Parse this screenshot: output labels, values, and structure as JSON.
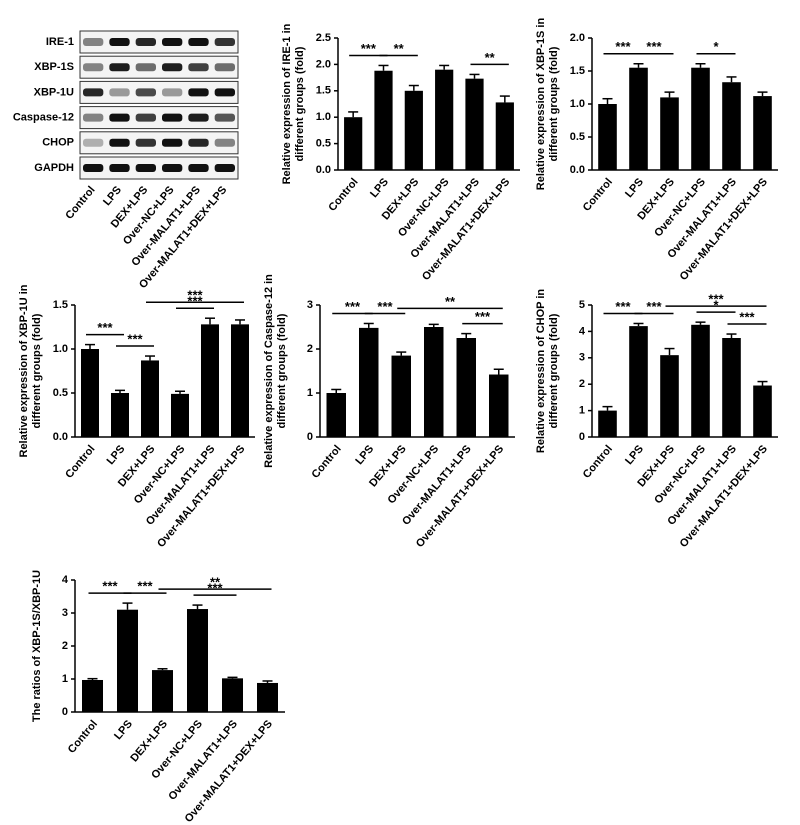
{
  "blot": {
    "rows": [
      "IRE-1",
      "XBP-1S",
      "XBP-1U",
      "Caspase-12",
      "CHOP",
      "GAPDH"
    ],
    "lanes": [
      "Control",
      "LPS",
      "DEX+LPS",
      "Over-NC+LPS",
      "Over-MALAT1+LPS",
      "Over-MALAT1+DEX+LPS"
    ]
  },
  "chart_data": [
    {
      "type": "bar",
      "ylabel": [
        "Relative expression of IRE-1 in",
        "different groups (fold)"
      ],
      "categories": [
        "Control",
        "LPS",
        "DEX+LPS",
        "Over-NC+LPS",
        "Over-MALAT1+LPS",
        "Over-MALAT1+DEX+LPS"
      ],
      "values": [
        1.0,
        1.88,
        1.5,
        1.9,
        1.73,
        1.28
      ],
      "errors": [
        0.1,
        0.1,
        0.1,
        0.08,
        0.08,
        0.12
      ],
      "color": "#000000",
      "ylim": [
        0,
        2.5
      ],
      "yticks": [
        {
          "value": 0,
          "label": "0.0"
        },
        0.5,
        {
          "value": 1,
          "label": "1.0"
        },
        1.5,
        {
          "value": 2,
          "label": "2.0"
        },
        2.5
      ],
      "annotations": [
        {
          "label": "***",
          "groups": [
            "Control",
            "LPS"
          ]
        },
        {
          "label": "**",
          "groups": [
            "LPS",
            "DEX+LPS"
          ]
        },
        {
          "label": "**",
          "groups": [
            "Over-MALAT1+LPS",
            "Over-MALAT1+DEX+LPS"
          ]
        }
      ]
    },
    {
      "type": "bar",
      "ylabel": [
        "Relative expression of XBP-1S in",
        "different groups (fold)"
      ],
      "categories": [
        "Control",
        "LPS",
        "DEX+LPS",
        "Over-NC+LPS",
        "Over-MALAT1+LPS",
        "Over-MALAT1+DEX+LPS"
      ],
      "values": [
        1.0,
        1.55,
        1.1,
        1.55,
        1.33,
        1.12
      ],
      "errors": [
        0.08,
        0.06,
        0.08,
        0.06,
        0.08,
        0.06
      ],
      "color": "#000000",
      "ylim": [
        0,
        2
      ],
      "yticks": [
        {
          "value": 0,
          "label": "0.0"
        },
        0.5,
        {
          "value": 1,
          "label": "1.0"
        },
        1.5,
        {
          "value": 2,
          "label": "2.0"
        }
      ],
      "annotations": [
        {
          "label": "***",
          "groups": [
            "Control",
            "LPS"
          ]
        },
        {
          "label": "***",
          "groups": [
            "LPS",
            "DEX+LPS"
          ]
        },
        {
          "label": "*",
          "groups": [
            "Over-NC+LPS",
            "Over-MALAT1+LPS"
          ]
        }
      ]
    },
    {
      "type": "bar",
      "ylabel": [
        "Relative expression of XBP-1U in",
        "different groups (fold)"
      ],
      "categories": [
        "Control",
        "LPS",
        "DEX+LPS",
        "Over-NC+LPS",
        "Over-MALAT1+LPS",
        "Over-MALAT1+DEX+LPS"
      ],
      "values": [
        1.0,
        0.5,
        0.87,
        0.49,
        1.28,
        1.28
      ],
      "errors": [
        0.05,
        0.03,
        0.05,
        0.03,
        0.07,
        0.05
      ],
      "color": "#000000",
      "ylim": [
        0,
        1.5
      ],
      "yticks": [
        {
          "value": 0,
          "label": "0.0"
        },
        0.5,
        {
          "value": 1,
          "label": "1.0"
        },
        1.5
      ],
      "annotations": [
        {
          "label": "***",
          "groups": [
            "Control",
            "LPS"
          ]
        },
        {
          "label": "***",
          "groups": [
            "LPS",
            "DEX+LPS"
          ]
        },
        {
          "label": "***",
          "groups": [
            "DEX+LPS",
            "Over-MALAT1+DEX+LPS"
          ]
        },
        {
          "label": "***",
          "groups": [
            "Over-NC+LPS",
            "Over-MALAT1+LPS"
          ]
        }
      ]
    },
    {
      "type": "bar",
      "ylabel": [
        "Relative expression of Caspase-12 in",
        "different groups (fold)"
      ],
      "categories": [
        "Control",
        "LPS",
        "DEX+LPS",
        "Over-NC+LPS",
        "Over-MALAT1+LPS",
        "Over-MALAT1+DEX+LPS"
      ],
      "values": [
        1.0,
        2.48,
        1.85,
        2.5,
        2.25,
        1.42
      ],
      "errors": [
        0.08,
        0.1,
        0.08,
        0.06,
        0.1,
        0.12
      ],
      "color": "#000000",
      "ylim": [
        0,
        3
      ],
      "yticks": [
        0,
        1,
        2,
        3
      ],
      "annotations": [
        {
          "label": "***",
          "groups": [
            "Control",
            "LPS"
          ]
        },
        {
          "label": "***",
          "groups": [
            "LPS",
            "DEX+LPS"
          ]
        },
        {
          "label": "**",
          "groups": [
            "DEX+LPS",
            "Over-MALAT1+DEX+LPS"
          ]
        },
        {
          "label": "***",
          "groups": [
            "Over-MALAT1+LPS",
            "Over-MALAT1+DEX+LPS"
          ]
        }
      ]
    },
    {
      "type": "bar",
      "ylabel": [
        "Relative expression of CHOP in",
        "different groups (fold)"
      ],
      "categories": [
        "Control",
        "LPS",
        "DEX+LPS",
        "Over-NC+LPS",
        "Over-MALAT1+LPS",
        "Over-MALAT1+DEX+LPS"
      ],
      "values": [
        1.0,
        4.2,
        3.1,
        4.25,
        3.75,
        1.95
      ],
      "errors": [
        0.15,
        0.1,
        0.25,
        0.1,
        0.15,
        0.15
      ],
      "color": "#000000",
      "ylim": [
        0,
        5
      ],
      "yticks": [
        0,
        1,
        2,
        3,
        4,
        5
      ],
      "annotations": [
        {
          "label": "***",
          "groups": [
            "Control",
            "LPS"
          ]
        },
        {
          "label": "***",
          "groups": [
            "LPS",
            "DEX+LPS"
          ]
        },
        {
          "label": "***",
          "groups": [
            "DEX+LPS",
            "Over-MALAT1+DEX+LPS"
          ]
        },
        {
          "label": "*",
          "groups": [
            "Over-NC+LPS",
            "Over-MALAT1+LPS"
          ]
        },
        {
          "label": "***",
          "groups": [
            "Over-MALAT1+LPS",
            "Over-MALAT1+DEX+LPS"
          ]
        }
      ]
    },
    {
      "type": "bar",
      "ylabel": [
        "The ratios of XBP-1S/XBP-1U"
      ],
      "categories": [
        "Control",
        "LPS",
        "DEX+LPS",
        "Over-NC+LPS",
        "Over-MALAT1+LPS",
        "Over-MALAT1+DEX+LPS"
      ],
      "values": [
        0.97,
        3.1,
        1.27,
        3.12,
        1.02,
        0.88
      ],
      "errors": [
        0.04,
        0.2,
        0.04,
        0.12,
        0.03,
        0.06
      ],
      "color": "#000000",
      "ylim": [
        0,
        4
      ],
      "yticks": [
        0,
        1,
        2,
        3,
        4
      ],
      "annotations": [
        {
          "label": "***",
          "groups": [
            "Control",
            "LPS"
          ]
        },
        {
          "label": "***",
          "groups": [
            "LPS",
            "DEX+LPS"
          ]
        },
        {
          "label": "**",
          "groups": [
            "DEX+LPS",
            "Over-MALAT1+DEX+LPS"
          ]
        },
        {
          "label": "***",
          "groups": [
            "Over-NC+LPS",
            "Over-MALAT1+LPS"
          ]
        }
      ]
    }
  ]
}
